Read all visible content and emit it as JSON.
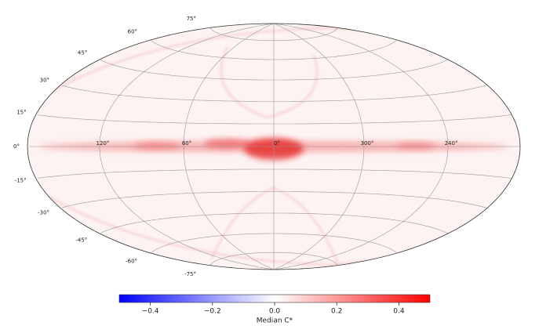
{
  "chart_data": {
    "type": "skymap",
    "projection": "hammer",
    "grid": true,
    "lat_ticks": [
      {
        "value": 75,
        "label": "75°"
      },
      {
        "value": 60,
        "label": "60°"
      },
      {
        "value": 45,
        "label": "45°"
      },
      {
        "value": 30,
        "label": "30°"
      },
      {
        "value": 15,
        "label": "15°"
      },
      {
        "value": 0,
        "label": "0°"
      },
      {
        "value": -15,
        "label": "-15°"
      },
      {
        "value": -30,
        "label": "-30°"
      },
      {
        "value": -45,
        "label": "-45°"
      },
      {
        "value": -60,
        "label": "-60°"
      },
      {
        "value": -75,
        "label": "-75°"
      }
    ],
    "lon_ticks": [
      {
        "value": 120,
        "label": "120°"
      },
      {
        "value": 60,
        "label": "60°"
      },
      {
        "value": 0,
        "label": "0°"
      },
      {
        "value": 300,
        "label": "300°"
      },
      {
        "value": 240,
        "label": "240°"
      }
    ],
    "colorbar": {
      "label": "Median C*",
      "clim": [
        -0.5,
        0.5
      ],
      "colors": [
        "#0000ff",
        "#ffffff",
        "#ff0000"
      ],
      "ticks": [
        {
          "value": -0.4,
          "label": "−0.4"
        },
        {
          "value": -0.2,
          "label": "−0.2"
        },
        {
          "value": 0,
          "label": "0.0"
        },
        0.2,
        0.4
      ]
    }
  }
}
